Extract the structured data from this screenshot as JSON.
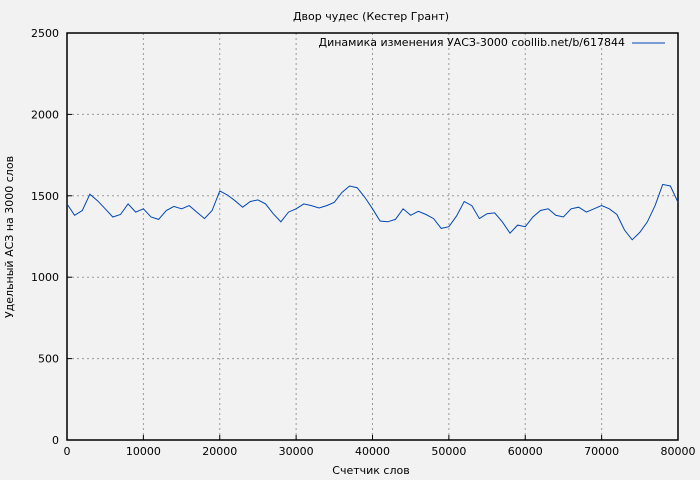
{
  "chart_data": {
    "type": "line",
    "title": "Двор чудес (Кестер Грант)",
    "xlabel": "Счетчик слов",
    "ylabel": "Удельный АСЗ на 3000 слов",
    "xlim": [
      0,
      80000
    ],
    "ylim": [
      0,
      2500
    ],
    "xticks": [
      0,
      10000,
      20000,
      30000,
      40000,
      50000,
      60000,
      70000,
      80000
    ],
    "yticks": [
      0,
      500,
      1000,
      1500,
      2000,
      2500
    ],
    "grid": true,
    "legend_position": "top-right",
    "series": [
      {
        "name": "Динамика изменения УАСЗ-3000 coollib.net/b/617844",
        "color": "#0047b3",
        "x": [
          0,
          1000,
          2000,
          3000,
          4000,
          5000,
          6000,
          7000,
          8000,
          9000,
          10000,
          11000,
          12000,
          13000,
          14000,
          15000,
          16000,
          17000,
          18000,
          19000,
          20000,
          21000,
          22000,
          23000,
          24000,
          25000,
          26000,
          27000,
          28000,
          29000,
          30000,
          31000,
          32000,
          33000,
          34000,
          35000,
          36000,
          37000,
          38000,
          39000,
          40000,
          41000,
          42000,
          43000,
          44000,
          45000,
          46000,
          47000,
          48000,
          49000,
          50000,
          51000,
          52000,
          53000,
          54000,
          55000,
          56000,
          57000,
          58000,
          59000,
          60000,
          61000,
          62000,
          63000,
          64000,
          65000,
          66000,
          67000,
          68000,
          69000,
          70000,
          71000,
          72000,
          73000,
          74000,
          75000,
          76000,
          77000,
          78000,
          79000,
          80000
        ],
        "y": [
          1450,
          1380,
          1410,
          1510,
          1470,
          1420,
          1370,
          1385,
          1450,
          1400,
          1420,
          1370,
          1355,
          1410,
          1435,
          1420,
          1440,
          1400,
          1360,
          1410,
          1530,
          1505,
          1470,
          1430,
          1465,
          1475,
          1450,
          1390,
          1340,
          1400,
          1420,
          1450,
          1440,
          1425,
          1440,
          1460,
          1520,
          1560,
          1550,
          1490,
          1420,
          1345,
          1340,
          1355,
          1420,
          1380,
          1405,
          1385,
          1360,
          1300,
          1310,
          1375,
          1465,
          1440,
          1360,
          1390,
          1395,
          1340,
          1270,
          1320,
          1310,
          1370,
          1410,
          1420,
          1380,
          1370,
          1420,
          1430,
          1400,
          1420,
          1440,
          1420,
          1385,
          1290,
          1230,
          1275,
          1340,
          1440,
          1570,
          1560,
          1460
        ]
      }
    ]
  }
}
